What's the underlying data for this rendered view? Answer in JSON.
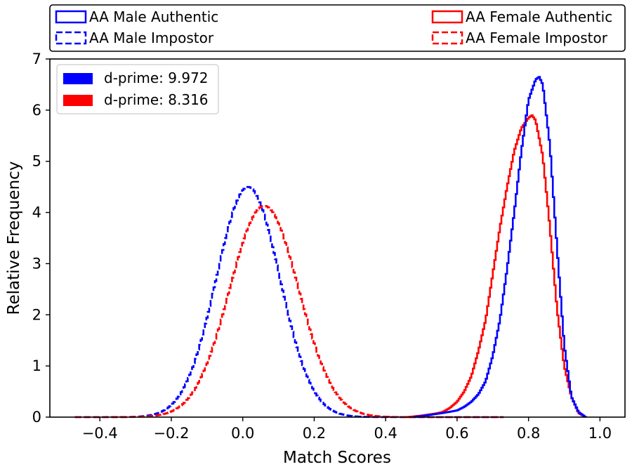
{
  "chart_data": {
    "type": "histogram-step",
    "xlabel": "Match Scores",
    "ylabel": "Relative Frequency",
    "xlim": [
      -0.54,
      1.07
    ],
    "ylim": [
      0,
      7
    ],
    "xticks": [
      -0.4,
      -0.2,
      0.0,
      0.2,
      0.4,
      0.6,
      0.8,
      1.0
    ],
    "xtick_labels": [
      "−0.4",
      "−0.2",
      "0.0",
      "0.2",
      "0.4",
      "0.6",
      "0.8",
      "1.0"
    ],
    "yticks": [
      0,
      1,
      2,
      3,
      4,
      5,
      6,
      7
    ],
    "ytick_labels": [
      "0",
      "1",
      "2",
      "3",
      "4",
      "5",
      "6",
      "7"
    ],
    "top_legend": [
      {
        "label": "AA Male Authentic",
        "color": "#0000ff",
        "style": "solid"
      },
      {
        "label": "AA Male Impostor",
        "color": "#0000ff",
        "style": "dashed"
      },
      {
        "label": "AA Female Authentic",
        "color": "#ff0000",
        "style": "solid"
      },
      {
        "label": "AA Female Impostor",
        "color": "#ff0000",
        "style": "dashed"
      }
    ],
    "dprime_legend": [
      {
        "label": "d-prime: 9.972",
        "color": "#0000ff"
      },
      {
        "label": "d-prime: 8.316",
        "color": "#ff0000"
      }
    ],
    "series": [
      {
        "name": "AA Male Authentic",
        "color": "#0000ff",
        "style": "solid",
        "x": [
          0.48,
          0.52,
          0.56,
          0.6,
          0.62,
          0.64,
          0.66,
          0.68,
          0.7,
          0.72,
          0.74,
          0.76,
          0.78,
          0.8,
          0.82,
          0.83,
          0.84,
          0.86,
          0.88,
          0.9,
          0.92,
          0.94,
          0.96
        ],
        "y": [
          0.0,
          0.04,
          0.08,
          0.13,
          0.2,
          0.3,
          0.45,
          0.7,
          1.2,
          1.9,
          2.9,
          4.0,
          5.2,
          6.2,
          6.6,
          6.65,
          6.5,
          5.3,
          3.3,
          1.4,
          0.4,
          0.1,
          0.0
        ]
      },
      {
        "name": "AA Female Authentic",
        "color": "#ff0000",
        "style": "solid",
        "x": [
          0.46,
          0.5,
          0.54,
          0.56,
          0.58,
          0.6,
          0.62,
          0.64,
          0.66,
          0.68,
          0.7,
          0.72,
          0.74,
          0.76,
          0.78,
          0.8,
          0.81,
          0.82,
          0.84,
          0.86,
          0.88,
          0.9,
          0.92,
          0.94,
          0.96
        ],
        "y": [
          0.0,
          0.03,
          0.07,
          0.1,
          0.18,
          0.3,
          0.5,
          0.8,
          1.3,
          1.9,
          2.8,
          3.7,
          4.5,
          5.2,
          5.65,
          5.85,
          5.9,
          5.8,
          5.1,
          3.7,
          2.1,
          1.0,
          0.4,
          0.08,
          0.0
        ]
      },
      {
        "name": "AA Male Impostor",
        "color": "#0000ff",
        "style": "dashed",
        "mean": 0.015,
        "sd": 0.0887,
        "peak": 4.5,
        "range": [
          -0.47,
          0.73
        ]
      },
      {
        "name": "AA Female Impostor",
        "color": "#ff0000",
        "style": "dashed",
        "mean": 0.06,
        "sd": 0.0966,
        "peak": 4.13,
        "range": [
          -0.47,
          0.73
        ]
      }
    ]
  }
}
